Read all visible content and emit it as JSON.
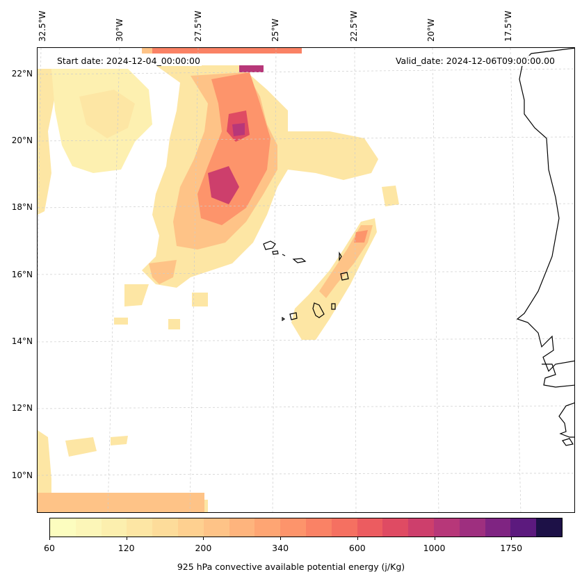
{
  "map": {
    "start_date": "Start date: 2024-12-04_00:00:00",
    "valid_date": "Valid_date: 2024-12-06T09:00:00.00",
    "lon_labels": [
      "32.5°W",
      "30°W",
      "27.5°W",
      "25°W",
      "22.5°W",
      "20°W",
      "17.5°W"
    ],
    "lat_labels": [
      "22°N",
      "20°N",
      "18°N",
      "16°N",
      "14°N",
      "12°N",
      "10°N"
    ],
    "field": "925 hPa convective available potential energy",
    "colormap": "magma_r"
  },
  "colorbar": {
    "title": "925 hPa convective available potential energy (j/Kg)",
    "tick_labels": [
      "60",
      "120",
      "200",
      "340",
      "600",
      "1000",
      "1750"
    ],
    "colors": [
      "#fcfdbf",
      "#fcf6b8",
      "#fcefae",
      "#fde6a4",
      "#fddc9a",
      "#fed090",
      "#fec387",
      "#feb47d",
      "#fea573",
      "#fd946b",
      "#fa8265",
      "#f57061",
      "#ec5c60",
      "#df4b63",
      "#cd3f6c",
      "#b73779",
      "#9e2f7f",
      "#7f2482",
      "#5c1a7e",
      "#1d1147"
    ]
  },
  "colors": {
    "coastline": "#000000",
    "gridline": "#cccccc"
  }
}
